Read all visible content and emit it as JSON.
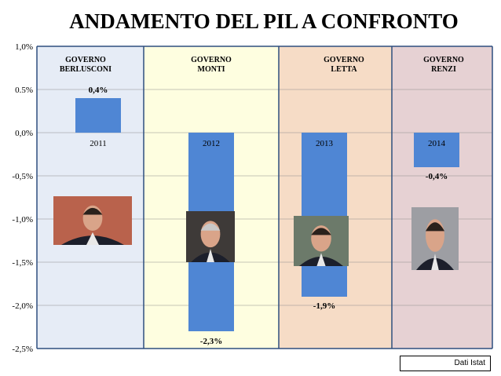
{
  "title": "ANDAMENTO DEL PIL A CONFRONTO",
  "source_label": "Dati Istat",
  "panels": [
    {
      "lines": [
        "GOVERNO",
        "BERLUSCONI"
      ],
      "color": "#e6ecf6",
      "portrait": "portrait-berlusconi"
    },
    {
      "lines": [
        "GOVERNO",
        "MONTI"
      ],
      "color": "#fefee0",
      "portrait": "portrait-monti"
    },
    {
      "lines": [
        "GOVERNO",
        "LETTA"
      ],
      "color": "#f6dcc6",
      "portrait": "portrait-letta"
    },
    {
      "lines": [
        "GOVERNO",
        "RENZI"
      ],
      "color": "#e6d1d3",
      "portrait": "portrait-renzi"
    }
  ],
  "chart_data": {
    "type": "bar",
    "title": "ANDAMENTO DEL PIL A CONFRONTO",
    "categories": [
      "2011",
      "2012",
      "2013",
      "2014"
    ],
    "values": [
      0.4,
      -2.3,
      -1.9,
      -0.4
    ],
    "value_labels": [
      "0,4%",
      "-2,3%",
      "-1,9%",
      "-0,4%"
    ],
    "ylim": [
      -2.5,
      1.0
    ],
    "yticks": [
      1.0,
      0.5,
      0.0,
      -0.5,
      -1.0,
      -1.5,
      -2.0,
      -2.5
    ],
    "ytick_labels": [
      "1,0%",
      "0.5%",
      "0,0%",
      "-0,5%",
      "-1,0%",
      "-1,5%",
      "-2,0%",
      "-2,5%"
    ],
    "grid": true,
    "bar_color": "#4f86d4"
  }
}
